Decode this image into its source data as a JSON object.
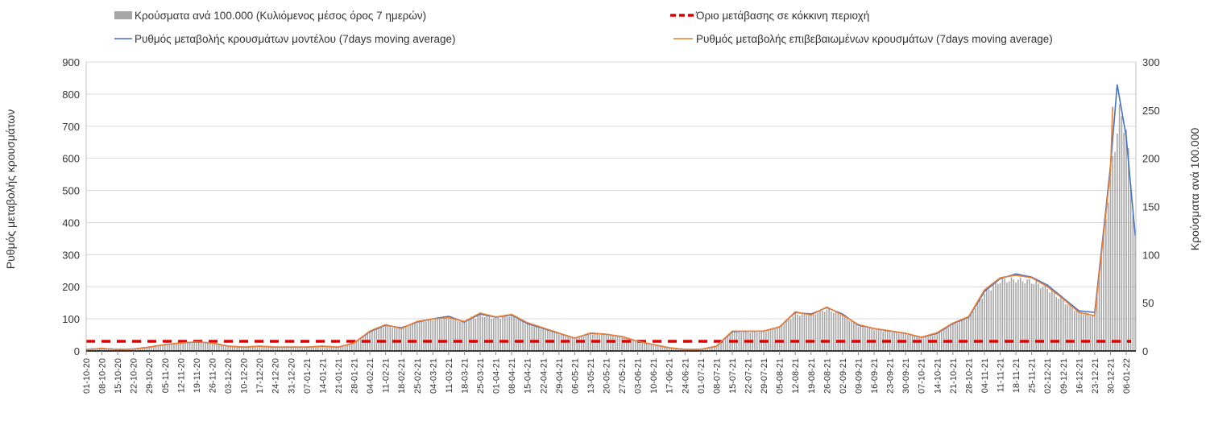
{
  "chart_data": {
    "type": "bar+line",
    "legend": {
      "bars": "Κρούσματα ανά 100.000 (Κυλιόμενος μέσος όρος 7 ημερών)",
      "threshold": "Όριο μετάβασης σε κόκκινη περιοχή",
      "model": "Ρυθμός μεταβολής κρουσμάτων μοντέλου (7days moving average)",
      "confirmed": "Ρυθμός μεταβολής επιβεβαιωμένων κρουσμάτων (7days moving average)"
    },
    "legend_position": "top",
    "ylabel_left": "Ρυθμός μεταβολής κρουσμάτων",
    "ylabel_right": "Κρούσματα ανά 100.000",
    "ylim_left": [
      0,
      900
    ],
    "ylim_right": [
      0,
      300
    ],
    "yticks_left": [
      "0",
      "100",
      "200",
      "300",
      "400",
      "500",
      "600",
      "700",
      "800",
      "900"
    ],
    "yticks_right": [
      "0",
      "50",
      "100",
      "150",
      "200",
      "250",
      "300"
    ],
    "x_tick_labels": [
      "01-10-20",
      "08-10-20",
      "15-10-20",
      "22-10-20",
      "29-10-20",
      "05-11-20",
      "12-11-20",
      "19-11-20",
      "26-11-20",
      "03-12-20",
      "10-12-20",
      "17-12-20",
      "24-12-20",
      "31-12-20",
      "07-01-21",
      "14-01-21",
      "21-01-21",
      "28-01-21",
      "04-02-21",
      "11-02-21",
      "18-02-21",
      "25-02-21",
      "04-03-21",
      "11-03-21",
      "18-03-21",
      "25-03-21",
      "01-04-21",
      "08-04-21",
      "15-04-21",
      "22-04-21",
      "29-04-21",
      "06-05-21",
      "13-05-21",
      "20-05-21",
      "27-05-21",
      "03-06-21",
      "10-06-21",
      "17-06-21",
      "24-06-21",
      "01-07-21",
      "08-07-21",
      "15-07-21",
      "22-07-21",
      "29-07-21",
      "05-08-21",
      "12-08-21",
      "19-08-21",
      "26-08-21",
      "02-09-21",
      "09-09-21",
      "16-09-21",
      "23-09-21",
      "30-09-21",
      "07-10-21",
      "14-10-21",
      "21-10-21",
      "28-10-21",
      "04-11-21",
      "11-11-21",
      "18-11-21",
      "25-11-21",
      "02-12-21",
      "09-12-21",
      "16-12-21",
      "23-12-21",
      "30-12-21",
      "06-01-22"
    ],
    "total_days": 467,
    "threshold_value_left": 30,
    "model_rate_weekly": [
      5,
      8,
      5,
      6,
      12,
      20,
      25,
      28,
      25,
      15,
      12,
      15,
      12,
      12,
      12,
      15,
      12,
      25,
      60,
      80,
      72,
      90,
      100,
      108,
      90,
      115,
      105,
      112,
      85,
      70,
      55,
      40,
      55,
      52,
      45,
      30,
      20,
      10,
      5,
      5,
      15,
      60,
      62,
      62,
      75,
      120,
      115,
      135,
      115,
      80,
      70,
      62,
      55,
      42,
      55,
      85,
      105,
      185,
      225,
      240,
      230,
      205,
      165,
      125,
      120,
      574,
      667
    ],
    "model_rate_tail": [
      [
        458,
        830
      ],
      [
        466,
        360
      ]
    ],
    "confirmed_rate_weekly": [
      5,
      8,
      5,
      6,
      12,
      20,
      25,
      28,
      25,
      15,
      12,
      15,
      12,
      12,
      12,
      15,
      12,
      25,
      62,
      82,
      70,
      92,
      100,
      104,
      92,
      118,
      106,
      114,
      88,
      72,
      56,
      40,
      56,
      52,
      45,
      30,
      20,
      10,
      5,
      5,
      15,
      62,
      62,
      62,
      75,
      122,
      112,
      137,
      112,
      82,
      70,
      63,
      55,
      43,
      57,
      87,
      107,
      190,
      228,
      236,
      228,
      200,
      162,
      120,
      110,
      560
    ],
    "confirmed_rate_tail": [
      [
        456,
        760
      ]
    ],
    "cases_per_100k_weekly": [
      2,
      3,
      2,
      2,
      4,
      6,
      8,
      9,
      8,
      5,
      4,
      5,
      4,
      4,
      4,
      5,
      4,
      8,
      20,
      26,
      24,
      30,
      33,
      35,
      30,
      37,
      34,
      37,
      28,
      23,
      18,
      13,
      18,
      17,
      15,
      10,
      6,
      3,
      2,
      2,
      5,
      20,
      20,
      20,
      25,
      38,
      38,
      43,
      38,
      26,
      23,
      20,
      18,
      14,
      18,
      28,
      35,
      60,
      73,
      74,
      72,
      65,
      52,
      40,
      37,
      180,
      230
    ],
    "cases_tail": [
      [
        459,
        247
      ],
      [
        466,
        120
      ]
    ]
  }
}
